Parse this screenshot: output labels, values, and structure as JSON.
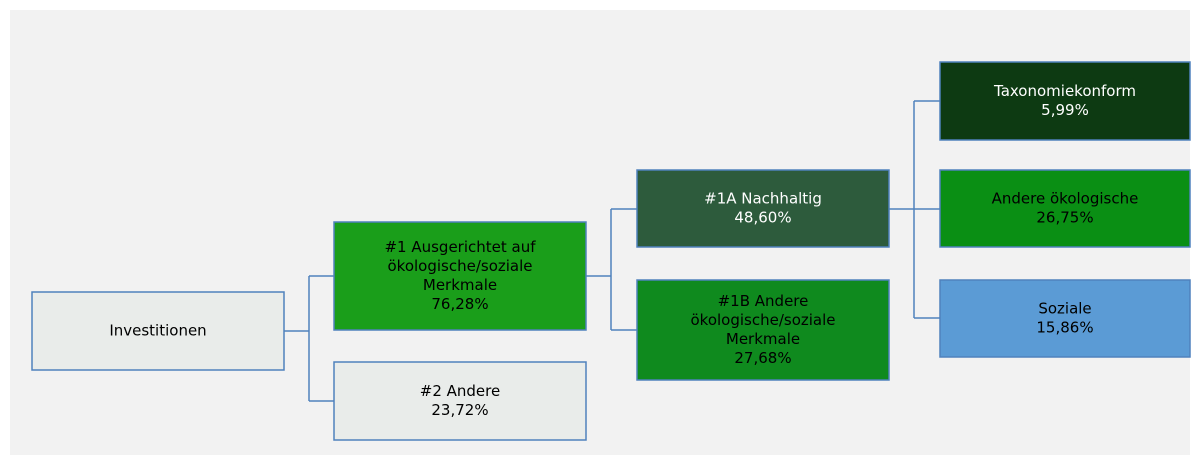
{
  "nodes": [
    {
      "label": [
        "Investitionen"
      ]
    },
    {
      "label": [
        "#1 Ausgerichtet auf",
        "ökologische/soziale",
        "Merkmale"
      ],
      "value": "76,28%"
    },
    {
      "label": [
        "#2 Andere"
      ],
      "value": "23,72%"
    },
    {
      "label": [
        "#1A Nachhaltig"
      ],
      "value": "48,60%"
    },
    {
      "label": [
        "#1B Andere",
        "ökologische/soziale",
        "Merkmale"
      ],
      "value": "27,68%"
    },
    {
      "label": [
        "Taxonomiekonform"
      ],
      "value": "5,99%"
    },
    {
      "label": [
        "Andere ökologische"
      ],
      "value": "26,75%"
    },
    {
      "label": [
        "Soziale"
      ],
      "value": "15,86%"
    }
  ]
}
